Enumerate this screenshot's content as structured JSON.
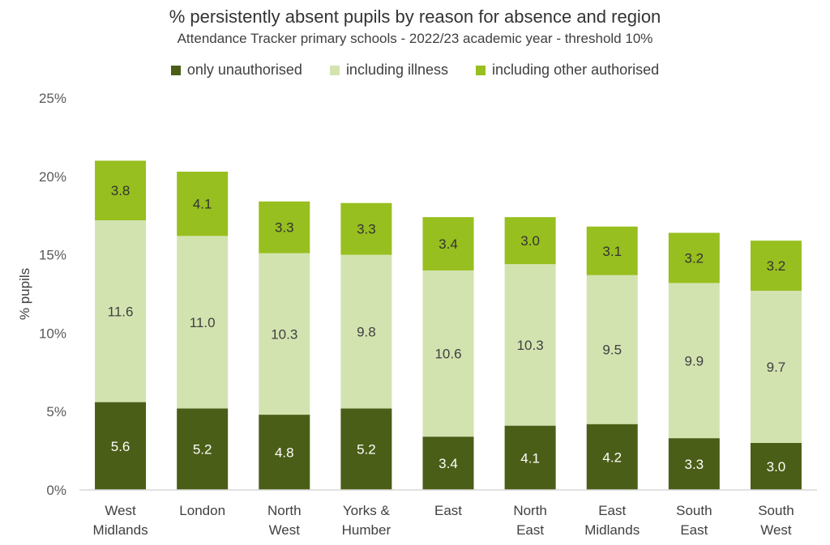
{
  "chart_data": {
    "type": "bar",
    "stacked": true,
    "title": "% persistently absent pupils by reason for absence and region",
    "subtitle": "Attendance Tracker primary schools - 2022/23 academic year - threshold 10%",
    "xlabel": "",
    "ylabel": "% pupils",
    "ylim": [
      0,
      25
    ],
    "yticks": [
      "0%",
      "5%",
      "10%",
      "15%",
      "20%",
      "25%"
    ],
    "ytick_values": [
      0,
      5,
      10,
      15,
      20,
      25
    ],
    "grid": false,
    "legend_position": "top",
    "categories": [
      [
        "West",
        "Midlands"
      ],
      [
        "London"
      ],
      [
        "North",
        "West"
      ],
      [
        "Yorks &",
        "Humber"
      ],
      [
        "East"
      ],
      [
        "North",
        "East"
      ],
      [
        "East",
        "Midlands"
      ],
      [
        "South",
        "East"
      ],
      [
        "South",
        "West"
      ]
    ],
    "series": [
      {
        "name": "only unauthorised",
        "color": "#4b5e17",
        "label_color": "#ffffff",
        "values": [
          5.6,
          5.2,
          4.8,
          5.2,
          3.4,
          4.1,
          4.2,
          3.3,
          3.0
        ],
        "labels": [
          "5.6",
          "5.2",
          "4.8",
          "5.2",
          "3.4",
          "4.1",
          "4.2",
          "3.3",
          "3.0"
        ]
      },
      {
        "name": "including illness",
        "color": "#d3e3b0",
        "label_color": "#404040",
        "values": [
          11.6,
          11.0,
          10.3,
          9.8,
          10.6,
          10.3,
          9.5,
          9.9,
          9.7
        ],
        "labels": [
          "11.6",
          "11.0",
          "10.3",
          "9.8",
          "10.6",
          "10.3",
          "9.5",
          "9.9",
          "9.7"
        ]
      },
      {
        "name": "including other authorised",
        "color": "#97bf1f",
        "label_color": "#333333",
        "values": [
          3.8,
          4.1,
          3.3,
          3.3,
          3.4,
          3.0,
          3.1,
          3.2,
          3.2
        ],
        "labels": [
          "3.8",
          "4.1",
          "3.3",
          "3.3",
          "3.4",
          "3.0",
          "3.1",
          "3.2",
          "3.2"
        ]
      }
    ]
  }
}
